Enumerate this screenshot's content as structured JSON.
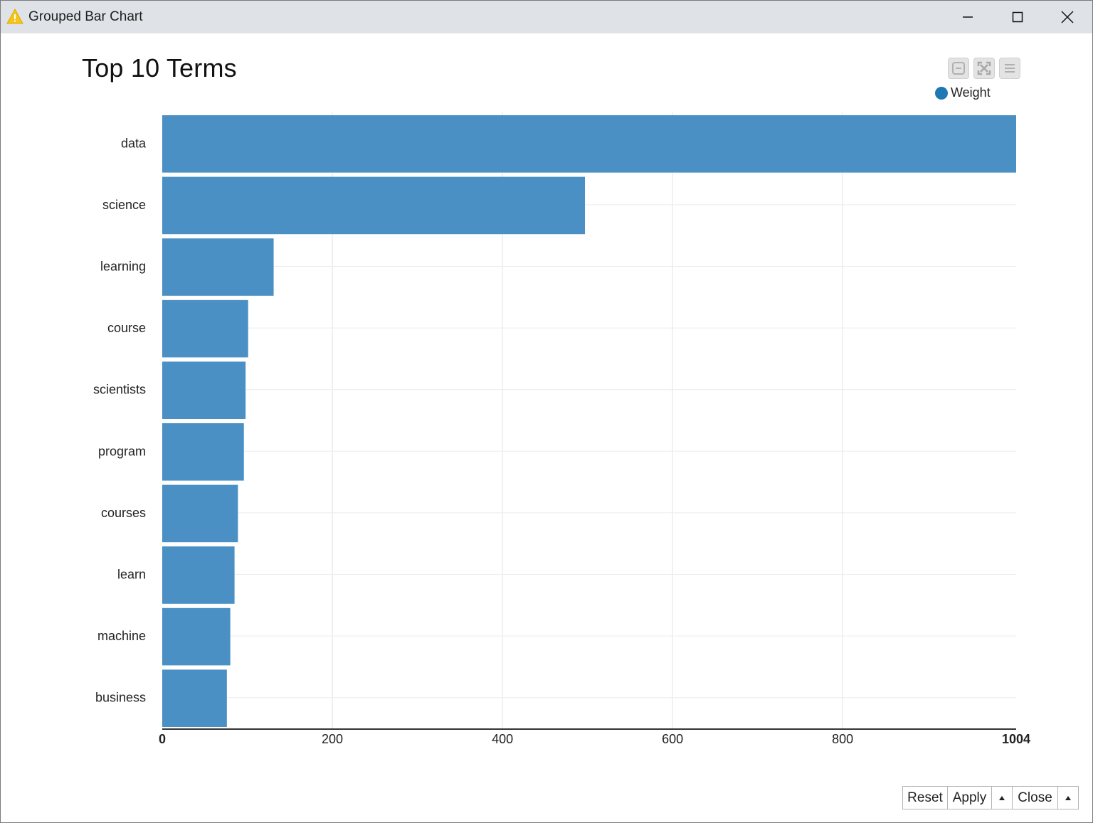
{
  "window": {
    "title": "Grouped Bar Chart",
    "icon": "warning-triangle-icon",
    "controls": [
      "minimize-icon",
      "maximize-icon",
      "close-icon"
    ]
  },
  "toolbar": {
    "buttons": [
      "zoom-reset-icon",
      "fullscreen-icon",
      "menu-icon"
    ]
  },
  "legend": {
    "label": "Weight",
    "color": "#1f77b4"
  },
  "chart_data": {
    "type": "bar",
    "orientation": "horizontal",
    "title": "Top 10 Terms",
    "xlabel": "",
    "ylabel": "",
    "categories": [
      "data",
      "science",
      "learning",
      "course",
      "scientists",
      "program",
      "courses",
      "learn",
      "machine",
      "business"
    ],
    "series": [
      {
        "name": "Weight",
        "values": [
          1004,
          497,
          131,
          101,
          98,
          96,
          89,
          85,
          80,
          76
        ],
        "color": "#4a90c4"
      }
    ],
    "xlim": [
      0,
      1004
    ],
    "x_ticks": [
      "0",
      "200",
      "400",
      "600",
      "800",
      "1004"
    ],
    "grid": true,
    "legend_position": "top-right"
  },
  "footer": {
    "reset_label": "Reset",
    "apply_label": "Apply",
    "close_label": "Close"
  }
}
